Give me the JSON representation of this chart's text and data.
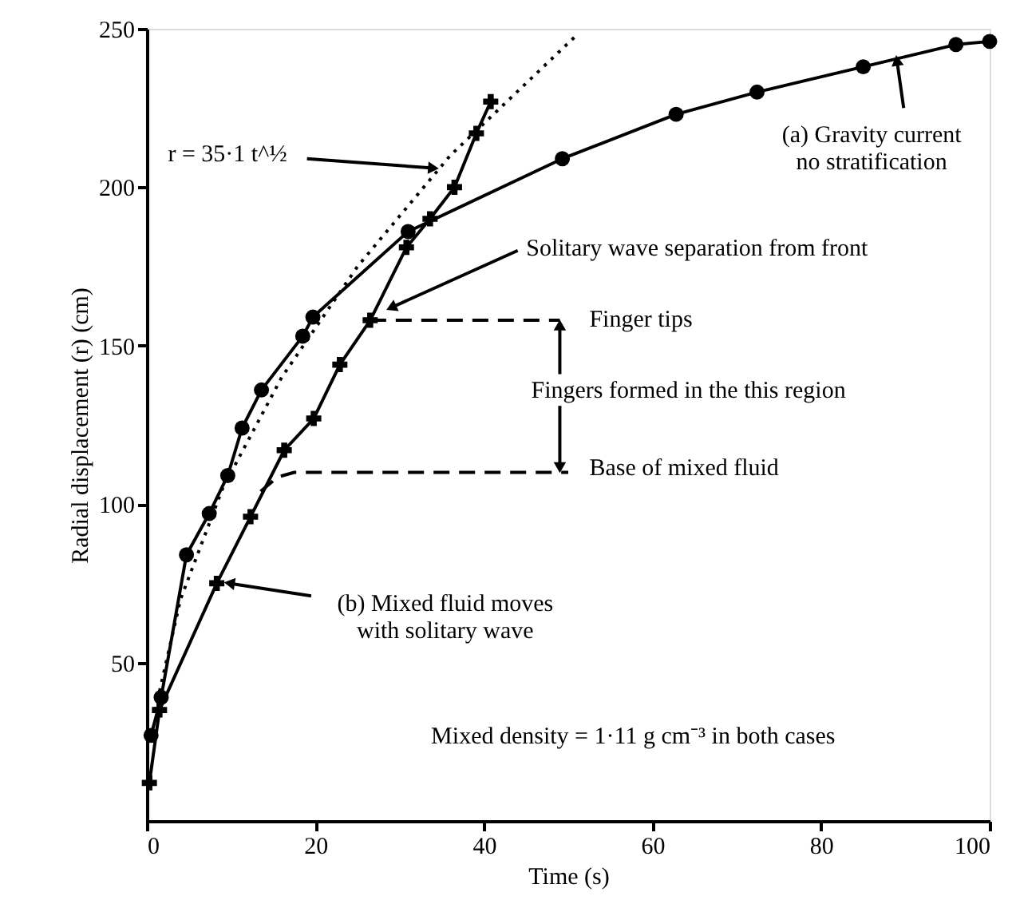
{
  "chart_data": {
    "type": "line",
    "xlabel": "Time (s)",
    "ylabel": "Radial displacement   (r) (cm)",
    "xlim": [
      0,
      100
    ],
    "ylim": [
      0,
      250
    ],
    "xticks": [
      0,
      20,
      40,
      60,
      80,
      100
    ],
    "yticks": [
      50,
      100,
      150,
      200,
      250
    ],
    "grid": false,
    "series": [
      {
        "color": "#000000",
        "marker": "circle",
        "line_style": "solid",
        "x": [
          0.5,
          1.7,
          4.7,
          7.4,
          9.6,
          11.3,
          13.6,
          18.5,
          19.7,
          31,
          49.3,
          62.8,
          72.4,
          85,
          96,
          100
        ],
        "values": [
          27,
          39,
          84,
          97,
          109,
          124,
          136,
          153,
          159,
          186,
          209,
          223,
          230,
          238,
          245,
          246
        ]
      },
      {
        "color": "#000000",
        "marker": "cross",
        "line_style": "solid",
        "x": [
          0.3,
          1.5,
          8.3,
          12.3,
          16.3,
          19.8,
          22.9,
          26.5,
          30.8,
          33.6,
          36.5,
          39.1,
          40.8
        ],
        "values": [
          12,
          35,
          75,
          96,
          117,
          127,
          144,
          158,
          181,
          190,
          200,
          217,
          227
        ]
      },
      {
        "color": "#000000",
        "marker": "none",
        "line_style": "dotted",
        "x": [
          1,
          4,
          9,
          16,
          25,
          36,
          51
        ],
        "values": [
          35,
          70,
          105,
          140,
          175,
          210,
          248
        ]
      },
      {
        "color": "#000000",
        "marker": "none",
        "line_style": "dashed",
        "x": [
          13.5,
          15.5,
          17.5,
          20,
          50
        ],
        "values": [
          104,
          108.5,
          110,
          110,
          110
        ]
      },
      {
        "color": "#000000",
        "marker": "none",
        "line_style": "dashed",
        "x": [
          26.5,
          49
        ],
        "values": [
          158,
          158
        ]
      }
    ],
    "annotations": [
      {
        "text": "r = 35·1 t^½",
        "x": 34,
        "y": 206
      },
      {
        "text": "(a) Gravity current\nno stratification",
        "x": 89,
        "y": 240
      },
      {
        "text": "Solitary wave separation from front",
        "x": 29,
        "y": 162
      },
      "Finger tips",
      {
        "text": "Fingers formed in the this region",
        "x": 49,
        "y": 158
      },
      "Base of mixed fluid",
      {
        "text": "(b) Mixed fluid moves\nwith solitary wave",
        "x": 8.3,
        "y": 75
      },
      "Mixed density = 1·11 g cm⁻³ in both cases"
    ]
  }
}
